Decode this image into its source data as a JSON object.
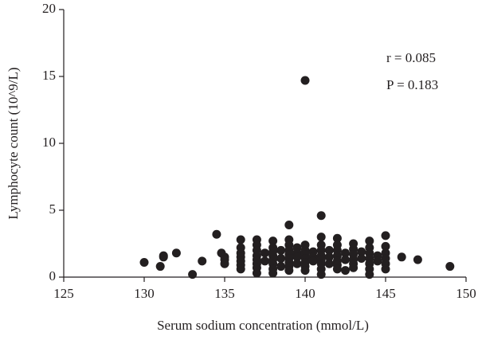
{
  "chart_data": {
    "type": "scatter",
    "x_label": "Serum sodium concentration (mmol/L)",
    "y_label": "Lymphocyte count (10^9/L)",
    "annotations": [
      "r = 0.085",
      "P = 0.183"
    ],
    "color": "#231f20",
    "xlim": [
      125,
      150
    ],
    "xticks": [
      125,
      130,
      135,
      140,
      145,
      150
    ],
    "ylim": [
      0,
      20
    ],
    "yticks": [
      0,
      5,
      10,
      15,
      20
    ],
    "x": [
      130,
      131,
      131.2,
      131.2,
      132,
      133,
      133.6,
      134.5,
      134.8,
      135,
      135,
      135,
      136,
      136,
      136,
      136,
      136,
      136,
      136,
      137,
      137,
      137,
      137,
      137,
      137,
      137,
      137,
      137.5,
      137.5,
      138,
      138,
      138,
      138,
      138,
      138,
      138,
      138,
      138.5,
      138.5,
      138.5,
      139,
      139,
      139,
      139,
      139,
      139,
      139,
      139,
      139,
      139.5,
      139.5,
      139.5,
      139.5,
      140,
      140,
      140,
      140,
      140,
      140,
      140,
      140,
      140.5,
      140.5,
      140.5,
      141,
      141,
      141,
      141,
      141,
      141,
      141,
      141,
      141,
      141.5,
      141.5,
      141.5,
      142,
      142,
      142,
      142,
      142,
      142,
      142,
      142.5,
      142.5,
      142.5,
      143,
      143,
      143,
      143,
      143,
      143,
      143.5,
      143.5,
      144,
      144,
      144,
      144,
      144,
      144,
      144,
      144.5,
      144.5,
      145,
      145,
      145,
      145,
      145,
      145,
      146,
      147,
      149
    ],
    "y": [
      1.1,
      0.8,
      1.5,
      1.6,
      1.8,
      0.2,
      1.2,
      3.2,
      1.8,
      1.0,
      1.5,
      1.3,
      2.8,
      2.2,
      1.8,
      1.5,
      1.2,
      0.9,
      0.6,
      2.8,
      2.4,
      2.0,
      1.6,
      1.3,
      1.0,
      0.7,
      0.3,
      1.2,
      1.8,
      2.7,
      2.2,
      1.9,
      1.6,
      1.3,
      1.0,
      0.6,
      0.3,
      2.0,
      1.4,
      0.8,
      3.9,
      2.8,
      2.4,
      2.0,
      1.7,
      1.4,
      1.1,
      0.8,
      0.5,
      2.2,
      1.8,
      1.5,
      1.0,
      14.7,
      2.4,
      2.0,
      1.7,
      1.4,
      1.1,
      0.8,
      0.5,
      1.9,
      1.5,
      1.2,
      4.6,
      3.0,
      2.4,
      2.0,
      1.6,
      1.3,
      1.0,
      0.6,
      0.2,
      2.0,
      1.5,
      1.0,
      2.9,
      2.4,
      2.0,
      1.6,
      1.2,
      0.9,
      0.6,
      1.8,
      1.3,
      0.5,
      2.5,
      2.1,
      1.7,
      1.3,
      1.0,
      0.7,
      1.9,
      1.4,
      2.7,
      2.2,
      1.8,
      1.4,
      1.0,
      0.6,
      0.2,
      1.6,
      1.2,
      3.1,
      2.3,
      1.8,
      1.4,
      1.0,
      0.6,
      1.5,
      1.3,
      0.8
    ]
  }
}
